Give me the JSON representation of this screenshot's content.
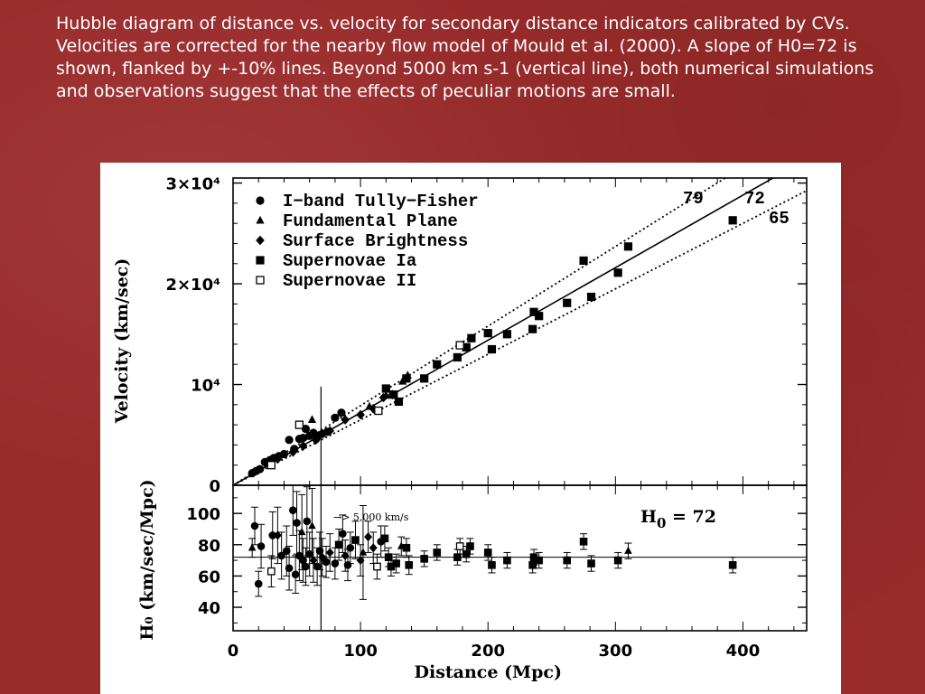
{
  "slide": {
    "caption": "Hubble diagram of distance vs. velocity for secondary distance indicators calibrated by CVs.  Velocities are corrected for the nearby flow model of Mould et al. (2000). A slope of H0=72 is shown, flanked by +-10% lines.  Beyond 5000 km s-1 (vertical line), both numerical simulations and observations suggest that the effects of peculiar motions are small."
  },
  "chart_data": [
    {
      "type": "scatter",
      "xlim": [
        0,
        450
      ],
      "ylim": [
        0,
        30500
      ],
      "ylabel": "Velocity (km/sec)",
      "ytick_labels": [
        "0",
        "10⁴",
        "2×10⁴",
        "3×10⁴"
      ],
      "ytick_values": [
        0,
        10000,
        20000,
        30000
      ],
      "legend_placement": "top-left",
      "legend": [
        "I−band Tully−Fisher",
        "Fundamental Plane",
        "Surface Brightness",
        "Supernovae Ia",
        "Supernovae II"
      ],
      "line_labels": [
        "79",
        "72",
        "65"
      ],
      "lines": [
        {
          "label": "79",
          "slope": 79,
          "style": "dotted"
        },
        {
          "label": "72",
          "slope": 72,
          "style": "solid"
        },
        {
          "label": "65",
          "slope": 65,
          "style": "dotted"
        }
      ],
      "vertical_line_x": 69,
      "series": [
        {
          "name": "I−band Tully−Fisher",
          "marker": "circle",
          "x": [
            15,
            18,
            21,
            25,
            29,
            32,
            36,
            40,
            44,
            48,
            52,
            55,
            57,
            60,
            63,
            66,
            70,
            74,
            80,
            85
          ],
          "y": [
            1200,
            1400,
            1600,
            2300,
            2500,
            2700,
            2900,
            3100,
            4500,
            3600,
            4600,
            4700,
            5600,
            4900,
            5200,
            4800,
            5100,
            5300,
            6700,
            7200
          ]
        },
        {
          "name": "Fundamental Plane",
          "marker": "triangle",
          "x": [
            62,
            107,
            120,
            133,
            137
          ],
          "y": [
            6500,
            7800,
            8900,
            10300,
            10900
          ]
        },
        {
          "name": "Surface Brightness",
          "marker": "diamond",
          "x": [
            35,
            47,
            55,
            65,
            76,
            88,
            100,
            110,
            118,
            125
          ],
          "y": [
            2600,
            3300,
            3900,
            4500,
            5400,
            6500,
            7000,
            7600,
            8700,
            9000
          ]
        },
        {
          "name": "Supernovae Ia",
          "marker": "square",
          "x": [
            120,
            126,
            130,
            136,
            150,
            160,
            176,
            183,
            187,
            200,
            203,
            215,
            235,
            236,
            240,
            262,
            275,
            281,
            302,
            310,
            392
          ],
          "y": [
            9600,
            9000,
            8300,
            10600,
            10600,
            12000,
            12700,
            13700,
            14600,
            15100,
            13500,
            15000,
            15500,
            17200,
            16800,
            18100,
            22300,
            18700,
            21100,
            23700,
            26300
          ]
        },
        {
          "name": "Supernovae II",
          "marker": "open-square",
          "x": [
            30,
            52,
            114,
            178
          ],
          "y": [
            2000,
            6000,
            7400,
            13900
          ]
        }
      ]
    },
    {
      "type": "scatter",
      "xlim": [
        0,
        450
      ],
      "ylim": [
        25,
        118
      ],
      "xlabel": "Distance (Mpc)",
      "ylabel": "H₀ (km/sec/Mpc)",
      "xtick_labels": [
        "0",
        "100",
        "200",
        "300",
        "400"
      ],
      "xtick_values": [
        0,
        100,
        200,
        300,
        400
      ],
      "ytick_labels": [
        "40",
        "60",
        "80",
        "100"
      ],
      "ytick_values": [
        40,
        60,
        80,
        100
      ],
      "reference_line_y": 72,
      "vertical_line_x": 69,
      "annotation": "→> 5,000 km/s",
      "inset_label_h": "H",
      "inset_label_sub": "0",
      "inset_label_rest": " = 72",
      "points": [
        {
          "x": 15,
          "y": 78,
          "err": 6,
          "marker": "triangle"
        },
        {
          "x": 17,
          "y": 92,
          "err": 12,
          "marker": "circle"
        },
        {
          "x": 20,
          "y": 55,
          "err": 8,
          "marker": "circle"
        },
        {
          "x": 22,
          "y": 79,
          "err": 14,
          "marker": "circle"
        },
        {
          "x": 30,
          "y": 63,
          "err": 10,
          "marker": "open-square"
        },
        {
          "x": 31,
          "y": 86,
          "err": 15,
          "marker": "circle"
        },
        {
          "x": 35,
          "y": 86,
          "err": 18,
          "marker": "diamond"
        },
        {
          "x": 38,
          "y": 73,
          "err": 15,
          "marker": "circle"
        },
        {
          "x": 42,
          "y": 76,
          "err": 16,
          "marker": "circle"
        },
        {
          "x": 44,
          "y": 65,
          "err": 14,
          "marker": "circle"
        },
        {
          "x": 47,
          "y": 102,
          "err": 16,
          "marker": "circle"
        },
        {
          "x": 49,
          "y": 61,
          "err": 12,
          "marker": "circle"
        },
        {
          "x": 50,
          "y": 94,
          "err": 20,
          "marker": "circle"
        },
        {
          "x": 52,
          "y": 73,
          "err": 16,
          "marker": "circle"
        },
        {
          "x": 54,
          "y": 88,
          "err": 24,
          "marker": "triangle"
        },
        {
          "x": 55,
          "y": 70,
          "err": 14,
          "marker": "circle"
        },
        {
          "x": 57,
          "y": 66,
          "err": 12,
          "marker": "circle"
        },
        {
          "x": 58,
          "y": 95,
          "err": 22,
          "marker": "circle"
        },
        {
          "x": 60,
          "y": 74,
          "err": 14,
          "marker": "circle"
        },
        {
          "x": 62,
          "y": 92,
          "err": 24,
          "marker": "triangle"
        },
        {
          "x": 63,
          "y": 70,
          "err": 14,
          "marker": "diamond"
        },
        {
          "x": 66,
          "y": 66,
          "err": 12,
          "marker": "circle"
        },
        {
          "x": 68,
          "y": 76,
          "err": 12,
          "marker": "circle"
        },
        {
          "x": 70,
          "y": 72,
          "err": 12,
          "marker": "diamond"
        },
        {
          "x": 73,
          "y": 69,
          "err": 10,
          "marker": "circle"
        },
        {
          "x": 76,
          "y": 75,
          "err": 12,
          "marker": "diamond"
        },
        {
          "x": 80,
          "y": 68,
          "err": 10,
          "marker": "circle"
        },
        {
          "x": 83,
          "y": 80,
          "err": 10,
          "marker": "square"
        },
        {
          "x": 86,
          "y": 87,
          "err": 12,
          "marker": "circle"
        },
        {
          "x": 88,
          "y": 73,
          "err": 10,
          "marker": "diamond"
        },
        {
          "x": 90,
          "y": 67,
          "err": 10,
          "marker": "circle"
        },
        {
          "x": 92,
          "y": 78,
          "err": 10,
          "marker": "circle"
        },
        {
          "x": 96,
          "y": 83,
          "err": 12,
          "marker": "square"
        },
        {
          "x": 100,
          "y": 70,
          "err": 10,
          "marker": "diamond"
        },
        {
          "x": 102,
          "y": 75,
          "err": 30,
          "marker": "triangle"
        },
        {
          "x": 106,
          "y": 85,
          "err": 10,
          "marker": "diamond"
        },
        {
          "x": 110,
          "y": 78,
          "err": 10,
          "marker": "diamond"
        },
        {
          "x": 113,
          "y": 66,
          "err": 8,
          "marker": "open-square"
        },
        {
          "x": 116,
          "y": 82,
          "err": 10,
          "marker": "circle"
        },
        {
          "x": 119,
          "y": 84,
          "err": 8,
          "marker": "square"
        },
        {
          "x": 122,
          "y": 72,
          "err": 6,
          "marker": "square"
        },
        {
          "x": 124,
          "y": 66,
          "err": 6,
          "marker": "square"
        },
        {
          "x": 128,
          "y": 68,
          "err": 6,
          "marker": "square"
        },
        {
          "x": 132,
          "y": 79,
          "err": 6,
          "marker": "triangle"
        },
        {
          "x": 136,
          "y": 78,
          "err": 6,
          "marker": "square"
        },
        {
          "x": 138,
          "y": 67,
          "err": 6,
          "marker": "square"
        },
        {
          "x": 150,
          "y": 71,
          "err": 5,
          "marker": "square"
        },
        {
          "x": 160,
          "y": 75,
          "err": 5,
          "marker": "square"
        },
        {
          "x": 176,
          "y": 72,
          "err": 5,
          "marker": "square"
        },
        {
          "x": 178,
          "y": 79,
          "err": 5,
          "marker": "open-square"
        },
        {
          "x": 183,
          "y": 74,
          "err": 5,
          "marker": "square"
        },
        {
          "x": 186,
          "y": 79,
          "err": 5,
          "marker": "square"
        },
        {
          "x": 200,
          "y": 75,
          "err": 5,
          "marker": "square"
        },
        {
          "x": 203,
          "y": 67,
          "err": 5,
          "marker": "square"
        },
        {
          "x": 215,
          "y": 70,
          "err": 5,
          "marker": "square"
        },
        {
          "x": 235,
          "y": 67,
          "err": 5,
          "marker": "square"
        },
        {
          "x": 236,
          "y": 72,
          "err": 5,
          "marker": "square"
        },
        {
          "x": 240,
          "y": 70,
          "err": 5,
          "marker": "square"
        },
        {
          "x": 262,
          "y": 70,
          "err": 5,
          "marker": "square"
        },
        {
          "x": 275,
          "y": 82,
          "err": 5,
          "marker": "square"
        },
        {
          "x": 281,
          "y": 68,
          "err": 5,
          "marker": "square"
        },
        {
          "x": 302,
          "y": 70,
          "err": 5,
          "marker": "square"
        },
        {
          "x": 310,
          "y": 76,
          "err": 5,
          "marker": "triangle"
        },
        {
          "x": 392,
          "y": 67,
          "err": 5,
          "marker": "square"
        }
      ]
    }
  ]
}
